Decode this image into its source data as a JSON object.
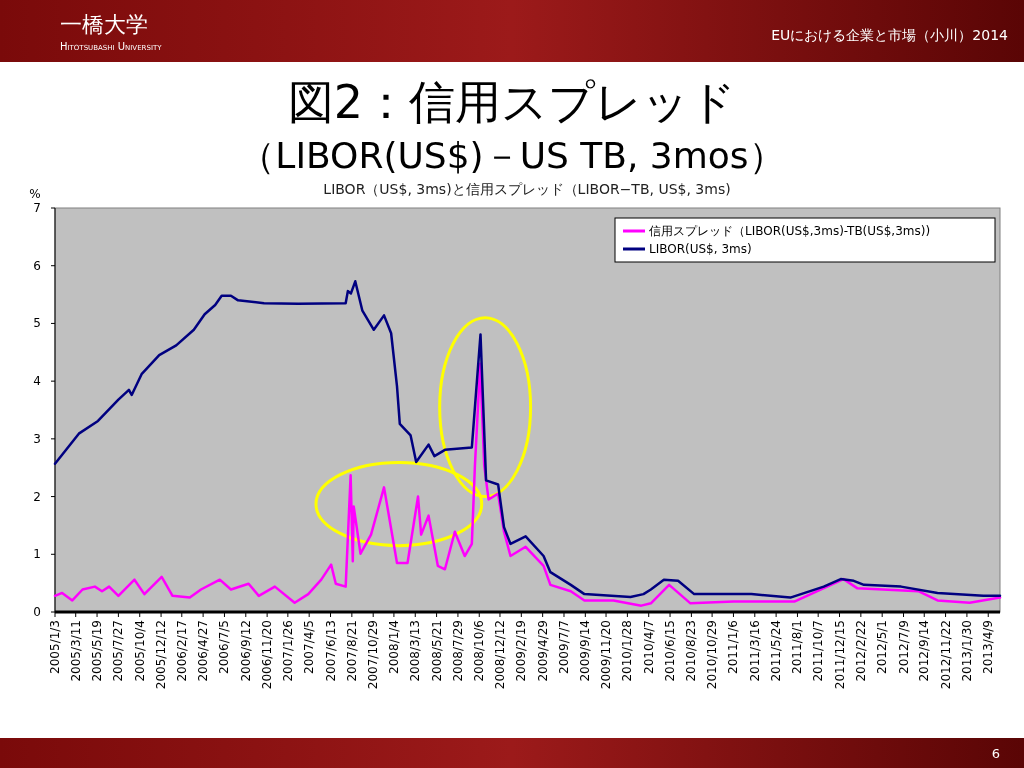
{
  "chart_data": {
    "type": "line",
    "title": "図2：信用スプレッド",
    "subtitle": "（LIBOR(US$)－US TB, 3mos）",
    "ylabel": "%",
    "annotations": [
      "一橋大学",
      "Hitotsubashi University",
      "EUにおける企業と市場（小川）2014",
      "LIBOR（US$, 3ms)と信用スプレッド（LIBOR−TB, US$, 3ms)",
      "6"
    ],
    "legend": "top right",
    "marker": "none",
    "line_style": "solid",
    "xlim": [
      "2005-01-03",
      "2013-05-17"
    ],
    "ylim": [
      0,
      7
    ],
    "yticks": [
      0,
      1,
      2,
      3,
      4,
      5,
      6,
      7
    ],
    "xticks": [
      {
        "value": "2005-01-03",
        "label": "2005/1/3"
      },
      {
        "value": "2005-03-11",
        "label": "2005/3/11"
      },
      {
        "value": "2005-05-19",
        "label": "2005/5/19"
      },
      {
        "value": "2005-07-27",
        "label": "2005/7/27"
      },
      {
        "value": "2005-10-04",
        "label": "2005/10/4"
      },
      {
        "value": "2005-12-12",
        "label": "2005/12/12"
      },
      {
        "value": "2006-02-17",
        "label": "2006/2/17"
      },
      {
        "value": "2006-04-27",
        "label": "2006/4/27"
      },
      {
        "value": "2006-07-05",
        "label": "2006/7/5"
      },
      {
        "value": "2006-09-12",
        "label": "2006/9/12"
      },
      {
        "value": "2006-11-20",
        "label": "2006/11/20"
      },
      {
        "value": "2007-01-26",
        "label": "2007/1/26"
      },
      {
        "value": "2007-04-05",
        "label": "2007/4/5"
      },
      {
        "value": "2007-06-13",
        "label": "2007/6/13"
      },
      {
        "value": "2007-08-21",
        "label": "2007/8/21"
      },
      {
        "value": "2007-10-29",
        "label": "2007/10/29"
      },
      {
        "value": "2008-01-04",
        "label": "2008/1/4"
      },
      {
        "value": "2008-03-13",
        "label": "2008/3/13"
      },
      {
        "value": "2008-05-21",
        "label": "2008/5/21"
      },
      {
        "value": "2008-07-29",
        "label": "2008/7/29"
      },
      {
        "value": "2008-10-06",
        "label": "2008/10/6"
      },
      {
        "value": "2008-12-12",
        "label": "2008/12/12"
      },
      {
        "value": "2009-02-19",
        "label": "2009/2/19"
      },
      {
        "value": "2009-04-29",
        "label": "2009/4/29"
      },
      {
        "value": "2009-07-07",
        "label": "2009/7/7"
      },
      {
        "value": "2009-09-14",
        "label": "2009/9/14"
      },
      {
        "value": "2009-11-20",
        "label": "2009/11/20"
      },
      {
        "value": "2010-01-28",
        "label": "2010/1/28"
      },
      {
        "value": "2010-04-07",
        "label": "2010/4/7"
      },
      {
        "value": "2010-06-15",
        "label": "2010/6/15"
      },
      {
        "value": "2010-08-23",
        "label": "2010/8/23"
      },
      {
        "value": "2010-10-29",
        "label": "2010/10/29"
      },
      {
        "value": "2011-01-06",
        "label": "2011/1/6"
      },
      {
        "value": "2011-03-16",
        "label": "2011/3/16"
      },
      {
        "value": "2011-05-24",
        "label": "2011/5/24"
      },
      {
        "value": "2011-08-01",
        "label": "2011/8/1"
      },
      {
        "value": "2011-10-07",
        "label": "2011/10/7"
      },
      {
        "value": "2011-12-15",
        "label": "2011/12/15"
      },
      {
        "value": "2012-02-22",
        "label": "2012/2/22"
      },
      {
        "value": "2012-05-01",
        "label": "2012/5/1"
      },
      {
        "value": "2012-07-09",
        "label": "2012/7/9"
      },
      {
        "value": "2012-09-14",
        "label": "2012/9/14"
      },
      {
        "value": "2012-11-22",
        "label": "2012/11/22"
      },
      {
        "value": "2013-01-30",
        "label": "2013/1/30"
      },
      {
        "value": "2013-04-09",
        "label": "2013/4/9"
      }
    ],
    "series": [
      {
        "name": "信用スプレッド（LIBOR(US$,3ms)-TB(US$,3ms))",
        "color": "#ff00ff",
        "x": [
          "2005-01-03",
          "2005-01-26",
          "2005-02-28",
          "2005-04-02",
          "2005-05-12",
          "2005-06-04",
          "2005-06-27",
          "2005-07-27",
          "2005-09-17",
          "2005-10-19",
          "2005-12-14",
          "2006-01-18",
          "2006-03-15",
          "2006-04-20",
          "2006-06-20",
          "2006-07-26",
          "2006-09-21",
          "2006-10-24",
          "2006-12-15",
          "2007-02-17",
          "2007-04-02",
          "2007-05-14",
          "2007-06-15",
          "2007-06-30",
          "2007-08-01",
          "2007-08-17",
          "2007-08-24",
          "2007-08-27",
          "2007-09-18",
          "2007-10-22",
          "2007-12-03",
          "2008-01-14",
          "2008-02-17",
          "2008-03-22",
          "2008-04-01",
          "2008-04-25",
          "2008-05-25",
          "2008-06-17",
          "2008-07-19",
          "2008-08-20",
          "2008-09-12",
          "2008-09-22",
          "2008-10-09",
          "2008-10-22",
          "2008-11-05",
          "2008-12-06",
          "2008-12-25",
          "2009-01-15",
          "2009-03-05",
          "2009-05-02",
          "2009-05-24",
          "2009-07-29",
          "2009-09-11",
          "2009-12-14",
          "2010-03-14",
          "2010-04-14",
          "2010-06-12",
          "2010-08-20",
          "2011-01-06",
          "2011-07-22",
          "2011-12-28",
          "2012-02-11",
          "2012-08-26",
          "2012-10-27",
          "2013-02-08",
          "2013-05-17"
        ],
        "values": [
          0.28,
          0.33,
          0.2,
          0.39,
          0.44,
          0.36,
          0.44,
          0.28,
          0.56,
          0.31,
          0.61,
          0.28,
          0.25,
          0.39,
          0.56,
          0.39,
          0.49,
          0.28,
          0.44,
          0.16,
          0.31,
          0.56,
          0.82,
          0.49,
          0.44,
          2.37,
          0.88,
          1.83,
          1.01,
          1.34,
          2.16,
          0.85,
          0.85,
          2.0,
          1.34,
          1.67,
          0.8,
          0.74,
          1.39,
          0.97,
          1.18,
          2.54,
          4.3,
          2.54,
          1.95,
          2.05,
          1.39,
          0.97,
          1.13,
          0.8,
          0.47,
          0.36,
          0.2,
          0.2,
          0.11,
          0.15,
          0.47,
          0.15,
          0.18,
          0.18,
          0.57,
          0.41,
          0.36,
          0.2,
          0.16,
          0.25
        ]
      },
      {
        "name": "LIBOR(US$, 3ms)",
        "color": "#000080",
        "x": [
          "2005-01-03",
          "2005-03-21",
          "2005-05-22",
          "2005-07-27",
          "2005-08-30",
          "2005-09-08",
          "2005-10-10",
          "2005-12-06",
          "2006-01-30",
          "2006-03-28",
          "2006-05-02",
          "2006-06-05",
          "2006-06-26",
          "2006-07-26",
          "2006-08-18",
          "2006-11-10",
          "2007-02-28",
          "2007-08-01",
          "2007-08-08",
          "2007-08-18",
          "2007-09-01",
          "2007-09-24",
          "2007-10-31",
          "2007-12-03",
          "2007-12-26",
          "2008-01-14",
          "2008-01-23",
          "2008-02-27",
          "2008-03-16",
          "2008-04-25",
          "2008-05-14",
          "2008-06-17",
          "2008-09-12",
          "2008-10-10",
          "2008-10-28",
          "2008-12-06",
          "2008-12-25",
          "2009-01-15",
          "2009-03-05",
          "2009-05-02",
          "2009-05-24",
          "2009-07-29",
          "2009-09-11",
          "2010-02-07",
          "2010-03-21",
          "2010-04-14",
          "2010-05-26",
          "2010-07-11",
          "2010-09-01",
          "2011-03-05",
          "2011-07-09",
          "2011-10-25",
          "2011-12-19",
          "2012-01-30",
          "2012-03-03",
          "2012-07-01",
          "2012-10-27",
          "2013-03-24",
          "2013-05-17"
        ],
        "values": [
          2.57,
          3.09,
          3.31,
          3.68,
          3.85,
          3.76,
          4.12,
          4.45,
          4.62,
          4.89,
          5.16,
          5.32,
          5.48,
          5.48,
          5.4,
          5.35,
          5.34,
          5.35,
          5.56,
          5.52,
          5.73,
          5.22,
          4.89,
          5.14,
          4.83,
          3.91,
          3.26,
          3.06,
          2.6,
          2.9,
          2.7,
          2.81,
          2.85,
          4.81,
          2.28,
          2.21,
          1.47,
          1.18,
          1.31,
          0.97,
          0.69,
          0.47,
          0.31,
          0.26,
          0.31,
          0.39,
          0.56,
          0.54,
          0.31,
          0.31,
          0.25,
          0.44,
          0.57,
          0.54,
          0.47,
          0.44,
          0.33,
          0.28,
          0.28
        ]
      }
    ]
  }
}
